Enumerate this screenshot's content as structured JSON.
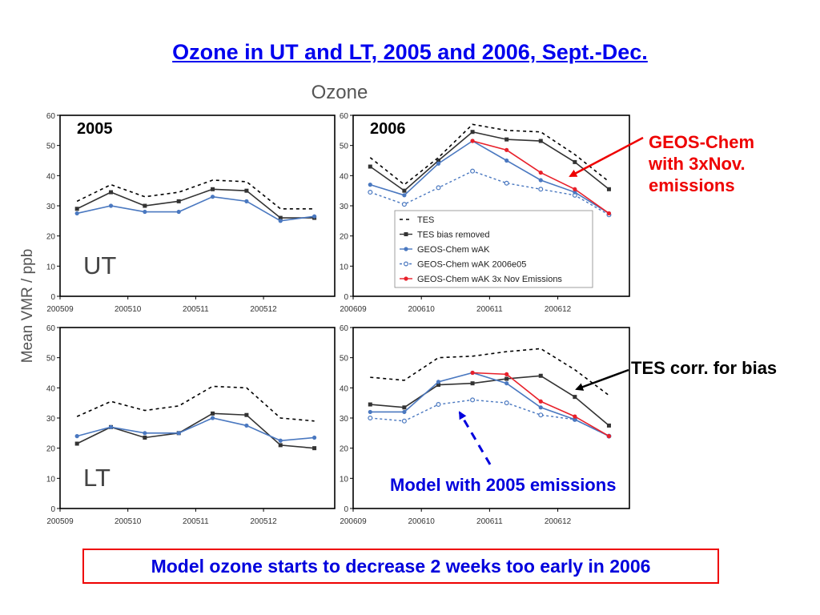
{
  "slide": {
    "title": "Ozone in UT and LT, 2005 and 2006, Sept.-Dec.",
    "conclusion": "Model ozone starts to decrease 2 weeks too early in 2006"
  },
  "figure": {
    "title": "Ozone",
    "ylabel": "Mean VMR / ppb",
    "year_labels": [
      "2005",
      "2006"
    ],
    "row_labels": [
      "UT",
      "LT"
    ]
  },
  "annotations": {
    "geos_chem": "GEOS-Chem\nwith 3xNov.\nemissions",
    "tes_corr": "TES corr. for bias",
    "model_2005": "Model with 2005 emissions"
  },
  "colors": {
    "title": "#0000ee",
    "annotation_red": "#ee0000",
    "annotation_blue": "#0000dd",
    "tes": "#000000",
    "tes_bias_removed": "#333333",
    "geos_chem": "#4a78c0",
    "geos_chem_3x": "#e8202a"
  },
  "legend": {
    "placement": "lower-right of 2006 UT panel",
    "entries": [
      {
        "key": "tes",
        "label": "TES"
      },
      {
        "key": "tes_bias_removed",
        "label": "TES bias removed"
      },
      {
        "key": "geos_chem_wak",
        "label": "GEOS-Chem wAK"
      },
      {
        "key": "geos_chem_2006e05",
        "label": "GEOS-Chem wAK 2006e05"
      },
      {
        "key": "geos_chem_3x",
        "label": "GEOS-Chem wAK 3x Nov Emissions"
      }
    ]
  },
  "chart_data": [
    {
      "type": "line",
      "panel": "2005-UT",
      "ylim": [
        0,
        60
      ],
      "yticks": [
        0,
        10,
        20,
        30,
        40,
        50,
        60
      ],
      "xlim": [
        0,
        8.1
      ],
      "xticks": [
        0,
        2,
        4,
        6
      ],
      "xticklabels": [
        "200509",
        "200510",
        "200511",
        "200512"
      ],
      "x": [
        0.5,
        1.5,
        2.5,
        3.5,
        4.5,
        5.5,
        6.5,
        7.5
      ],
      "series": [
        {
          "name": "TES",
          "values": [
            31.5,
            37,
            33,
            34.5,
            38.5,
            38,
            29,
            29
          ]
        },
        {
          "name": "TES bias removed",
          "values": [
            29,
            34.5,
            30,
            31.5,
            35.5,
            35,
            26,
            26
          ]
        },
        {
          "name": "GEOS-Chem wAK",
          "values": [
            27.5,
            30,
            28,
            28,
            33,
            31.5,
            25,
            26.5
          ]
        }
      ]
    },
    {
      "type": "line",
      "panel": "2006-UT",
      "ylim": [
        0,
        60
      ],
      "yticks": [
        0,
        10,
        20,
        30,
        40,
        50,
        60
      ],
      "xlim": [
        0,
        8.1
      ],
      "xticks": [
        0,
        2,
        4,
        6
      ],
      "xticklabels": [
        "200609",
        "200610",
        "200611",
        "200612"
      ],
      "x": [
        0.5,
        1.5,
        2.5,
        3.5,
        4.5,
        5.5,
        6.5,
        7.5
      ],
      "series": [
        {
          "name": "TES",
          "values": [
            46,
            37,
            46,
            57,
            55,
            54.5,
            47,
            38
          ]
        },
        {
          "name": "TES bias removed",
          "values": [
            43,
            35,
            45,
            54.5,
            52,
            51.5,
            44.5,
            35.5
          ]
        },
        {
          "name": "GEOS-Chem wAK",
          "values": [
            37,
            33.5,
            44,
            51.5,
            45,
            38.5,
            34.5,
            27.5
          ]
        },
        {
          "name": "GEOS-Chem wAK 2006e05",
          "values": [
            34.5,
            30.5,
            36,
            41.5,
            37.5,
            35.5,
            33.5,
            27
          ]
        },
        {
          "name": "GEOS-Chem wAK 3x Nov Emissions",
          "values": [
            null,
            null,
            null,
            51.5,
            48.5,
            41,
            35.5,
            27.5
          ]
        }
      ]
    },
    {
      "type": "line",
      "panel": "2005-LT",
      "ylim": [
        0,
        60
      ],
      "yticks": [
        0,
        10,
        20,
        30,
        40,
        50,
        60
      ],
      "xlim": [
        0,
        8.1
      ],
      "xticks": [
        0,
        2,
        4,
        6
      ],
      "xticklabels": [
        "200509",
        "200510",
        "200511",
        "200512"
      ],
      "x": [
        0.5,
        1.5,
        2.5,
        3.5,
        4.5,
        5.5,
        6.5,
        7.5
      ],
      "series": [
        {
          "name": "TES",
          "values": [
            30.5,
            35.5,
            32.5,
            34,
            40.5,
            40,
            30,
            29
          ]
        },
        {
          "name": "TES bias removed",
          "values": [
            21.5,
            27,
            23.5,
            25,
            31.5,
            31,
            21,
            20
          ]
        },
        {
          "name": "GEOS-Chem wAK",
          "values": [
            24,
            27,
            25,
            25,
            30,
            27.5,
            22.5,
            23.5
          ]
        }
      ]
    },
    {
      "type": "line",
      "panel": "2006-LT",
      "ylim": [
        0,
        60
      ],
      "yticks": [
        0,
        10,
        20,
        30,
        40,
        50,
        60
      ],
      "xlim": [
        0,
        8.1
      ],
      "xticks": [
        0,
        2,
        4,
        6
      ],
      "xticklabels": [
        "200609",
        "200610",
        "200611",
        "200612"
      ],
      "x": [
        0.5,
        1.5,
        2.5,
        3.5,
        4.5,
        5.5,
        6.5,
        7.5
      ],
      "series": [
        {
          "name": "TES",
          "values": [
            43.5,
            42.5,
            50,
            50.5,
            52,
            53,
            46,
            37.5
          ]
        },
        {
          "name": "TES bias removed",
          "values": [
            34.5,
            33.5,
            41,
            41.5,
            43,
            44,
            37,
            27.5
          ]
        },
        {
          "name": "GEOS-Chem wAK",
          "values": [
            32,
            32,
            42,
            45,
            41.5,
            33.5,
            29.5,
            24
          ]
        },
        {
          "name": "GEOS-Chem wAK 2006e05",
          "values": [
            30,
            29,
            34.5,
            36,
            35,
            31,
            29.5,
            24
          ]
        },
        {
          "name": "GEOS-Chem wAK 3x Nov Emissions",
          "values": [
            null,
            null,
            null,
            45,
            44.5,
            35.5,
            30.5,
            24
          ]
        }
      ]
    }
  ]
}
